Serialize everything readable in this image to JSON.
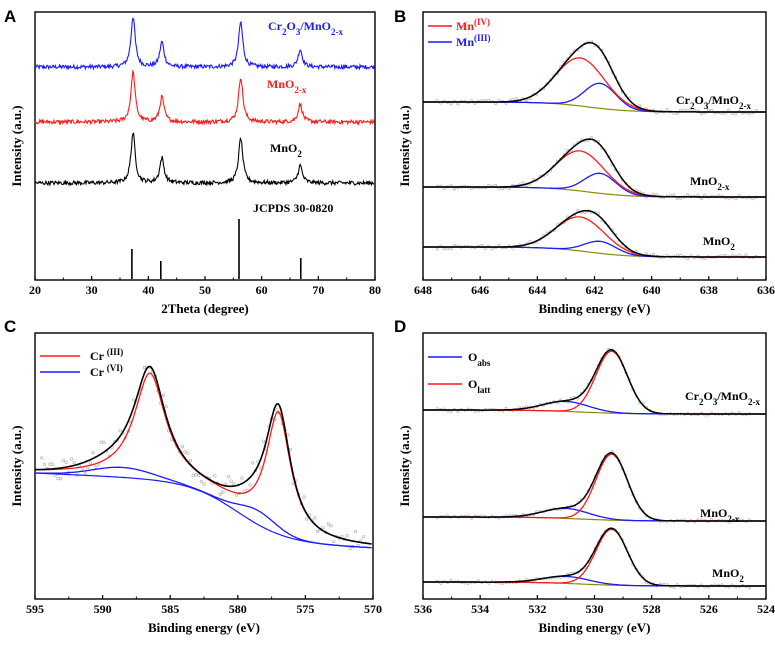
{
  "chart_data": [
    {
      "panel": "A",
      "type": "line",
      "xlabel": "2Theta (degree)",
      "ylabel": "Intensity (a.u.)",
      "xlim": [
        20,
        80
      ],
      "xticks": [
        20,
        30,
        40,
        50,
        60,
        70,
        80
      ],
      "colors": {
        "Cr2O3/MnO2-x": "#1a1aff",
        "MnO2-x": "#ff1a1a",
        "MnO2": "#000000",
        "ref": "#000000"
      },
      "series": [
        {
          "name": "Cr2O3/MnO2-x",
          "label": {
            "base": "Cr2O3/MnO2-x",
            "parts": [
              [
                "Cr",
                ""
              ],
              [
                "2",
                "sub"
              ],
              [
                "O",
                ""
              ],
              [
                "3",
                "sub"
              ],
              [
                "/MnO",
                ""
              ],
              [
                "2-x",
                "sub"
              ]
            ]
          },
          "peaks": [
            [
              37.3,
              1.0
            ],
            [
              42.4,
              0.5
            ],
            [
              56.3,
              0.9
            ],
            [
              66.8,
              0.35
            ]
          ]
        },
        {
          "name": "MnO2-x",
          "label": {
            "base": "MnO2-x",
            "parts": [
              [
                "MnO",
                ""
              ],
              [
                "2-x",
                "sub"
              ]
            ]
          },
          "peaks": [
            [
              37.3,
              1.0
            ],
            [
              42.4,
              0.5
            ],
            [
              56.3,
              0.9
            ],
            [
              66.8,
              0.35
            ]
          ]
        },
        {
          "name": "MnO2",
          "label": {
            "base": "MnO2",
            "parts": [
              [
                "MnO",
                ""
              ],
              [
                "2",
                "sub"
              ]
            ]
          },
          "peaks": [
            [
              37.3,
              1.0
            ],
            [
              42.4,
              0.5
            ],
            [
              56.3,
              0.9
            ],
            [
              66.8,
              0.35
            ]
          ]
        }
      ],
      "reference": {
        "name": "JCPDS 30-0820",
        "lines": [
          [
            37.1,
            0.5
          ],
          [
            42.2,
            0.3
          ],
          [
            56.0,
            1.0
          ],
          [
            66.9,
            0.35
          ]
        ]
      }
    },
    {
      "panel": "B",
      "type": "line",
      "xlabel": "Binding energy  (eV)",
      "ylabel": "Intensity (a.u.)",
      "xlim": [
        648,
        636
      ],
      "xticks": [
        648,
        646,
        644,
        642,
        640,
        638,
        636
      ],
      "legend": [
        {
          "name": "Mn(IV)",
          "parts": [
            [
              "Mn",
              ""
            ],
            [
              "(IV)",
              "sup"
            ]
          ],
          "color": "#ff1a1a"
        },
        {
          "name": "Mn(III)",
          "parts": [
            [
              "Mn",
              ""
            ],
            [
              "(III)",
              "sup"
            ]
          ],
          "color": "#1a1aff"
        }
      ],
      "series": [
        {
          "name": "Cr2O3/MnO2-x",
          "parts": [
            [
              "Cr",
              ""
            ],
            [
              "2",
              "sub"
            ],
            [
              "O",
              ""
            ],
            [
              "3",
              "sub"
            ],
            [
              "/MnO",
              ""
            ],
            [
              "2-x",
              "sub"
            ]
          ]
        },
        {
          "name": "MnO2-x",
          "parts": [
            [
              "MnO",
              ""
            ],
            [
              "2-x",
              "sub"
            ]
          ]
        },
        {
          "name": "MnO2",
          "parts": [
            [
              "MnO",
              ""
            ],
            [
              "2",
              "sub"
            ]
          ]
        }
      ],
      "peaks": {
        "mn4": 642.5,
        "mn3": 641.8
      }
    },
    {
      "panel": "C",
      "type": "line",
      "xlabel": "Binding energy (eV)",
      "ylabel": "Intensity (a.u.)",
      "xlim": [
        595,
        570
      ],
      "xticks": [
        595,
        590,
        585,
        580,
        575,
        570
      ],
      "legend": [
        {
          "name": "Cr (III)",
          "parts": [
            [
              "Cr ",
              ""
            ],
            [
              "(III)",
              "sup"
            ]
          ],
          "color": "#ff1a1a"
        },
        {
          "name": "Cr (VI)",
          "parts": [
            [
              "Cr ",
              ""
            ],
            [
              "(VI)",
              "sup"
            ]
          ],
          "color": "#1a1aff"
        }
      ],
      "peaks": {
        "cr3_1": 586.5,
        "cr3_2": 577.0,
        "cr6_1": 588.5,
        "cr6_2": 578.5
      }
    },
    {
      "panel": "D",
      "type": "line",
      "xlabel": "Binding energy (eV)",
      "ylabel": "Intensity (a.u.)",
      "xlim": [
        536,
        524
      ],
      "xticks": [
        536,
        534,
        532,
        530,
        528,
        526,
        524
      ],
      "legend": [
        {
          "name": "Oabs",
          "parts": [
            [
              "O",
              ""
            ],
            [
              "abs",
              "sub"
            ]
          ],
          "color": "#1a1aff"
        },
        {
          "name": "Olatt",
          "parts": [
            [
              "O",
              ""
            ],
            [
              "latt",
              "sub"
            ]
          ],
          "color": "#ff1a1a"
        }
      ],
      "series": [
        {
          "name": "Cr2O3/MnO2-x",
          "parts": [
            [
              "Cr",
              ""
            ],
            [
              "2",
              "sub"
            ],
            [
              "O",
              ""
            ],
            [
              "3",
              "sub"
            ],
            [
              "/MnO",
              ""
            ],
            [
              "2-x",
              "sub"
            ]
          ]
        },
        {
          "name": "MnO2-x",
          "parts": [
            [
              "MnO",
              ""
            ],
            [
              "2-x",
              "sub"
            ]
          ]
        },
        {
          "name": "MnO2",
          "parts": [
            [
              "MnO",
              ""
            ],
            [
              "2",
              "sub"
            ]
          ]
        }
      ],
      "peaks": {
        "olatt": 529.4,
        "oabs": 531.0
      }
    }
  ],
  "panel_letters": [
    "A",
    "B",
    "C",
    "D"
  ]
}
